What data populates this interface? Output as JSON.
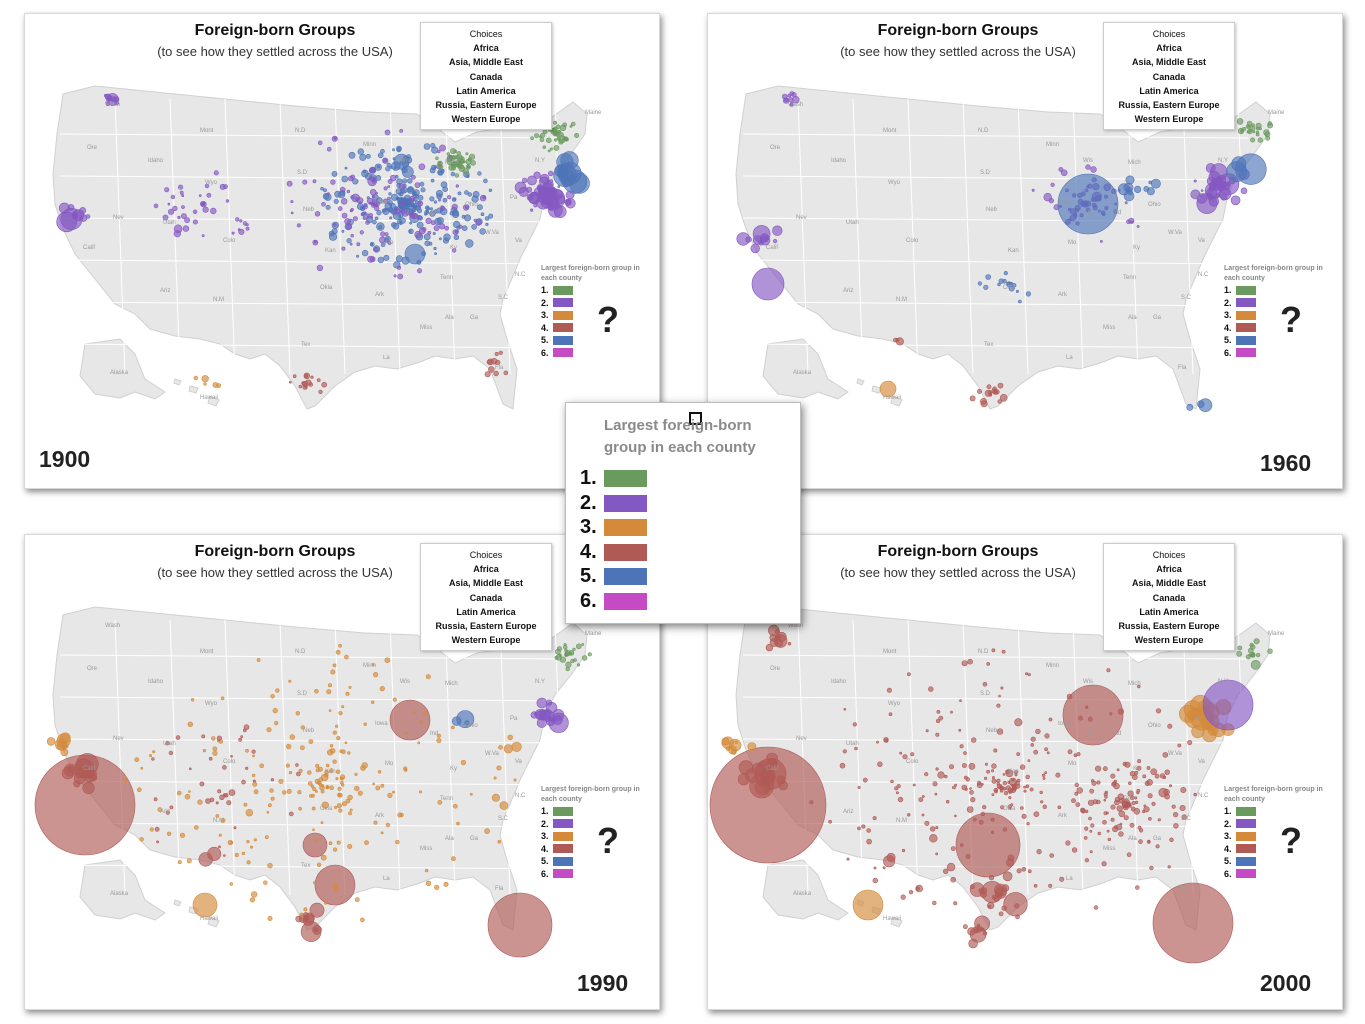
{
  "colors": {
    "group1": "#6b9a5f",
    "group2": "#8458c2",
    "group3": "#d48a3a",
    "group4": "#b05a56",
    "group5": "#4e74b8",
    "group6": "#c54bc4",
    "land": "#e7e7e7",
    "borders": "#ffffff"
  },
  "common": {
    "title": "Foreign-born Groups",
    "subtitle": "(to see how they settled across the USA)",
    "choices_header": "Choices",
    "choices": [
      "Africa",
      "Asia, Middle East",
      "Canada",
      "Latin America",
      "Russia, Eastern Europe",
      "Western Europe"
    ],
    "legend_title": "Largest foreign-born group in each county",
    "legend_numbers": [
      "1.",
      "2.",
      "3.",
      "4.",
      "5.",
      "6."
    ],
    "question_mark": "?"
  },
  "panels": [
    {
      "year": "1900"
    },
    {
      "year": "1960"
    },
    {
      "year": "1990"
    },
    {
      "year": "2000"
    }
  ],
  "state_labels": [
    "Wash",
    "Ore",
    "Idaho",
    "Mont",
    "Wyo",
    "N.D",
    "S.D",
    "Neb",
    "Kan",
    "Okla",
    "Tex",
    "N.M",
    "Ariz",
    "Utah",
    "Colo",
    "Nev",
    "Calif",
    "Minn",
    "Iowa",
    "Mo",
    "Ark",
    "La",
    "Miss",
    "Ala",
    "Ga",
    "Fla",
    "S.C",
    "N.C",
    "Tenn",
    "Ky",
    "Va",
    "W.Va",
    "Ohio",
    "Ind",
    "Ill",
    "Wis",
    "Mich",
    "Pa",
    "N.Y",
    "Maine",
    "Alaska",
    "Hawaii"
  ],
  "zoom_legend": {
    "title": "Largest foreign-born group in each county",
    "numbers": [
      "1.",
      "2.",
      "3.",
      "4.",
      "5.",
      "6."
    ]
  }
}
